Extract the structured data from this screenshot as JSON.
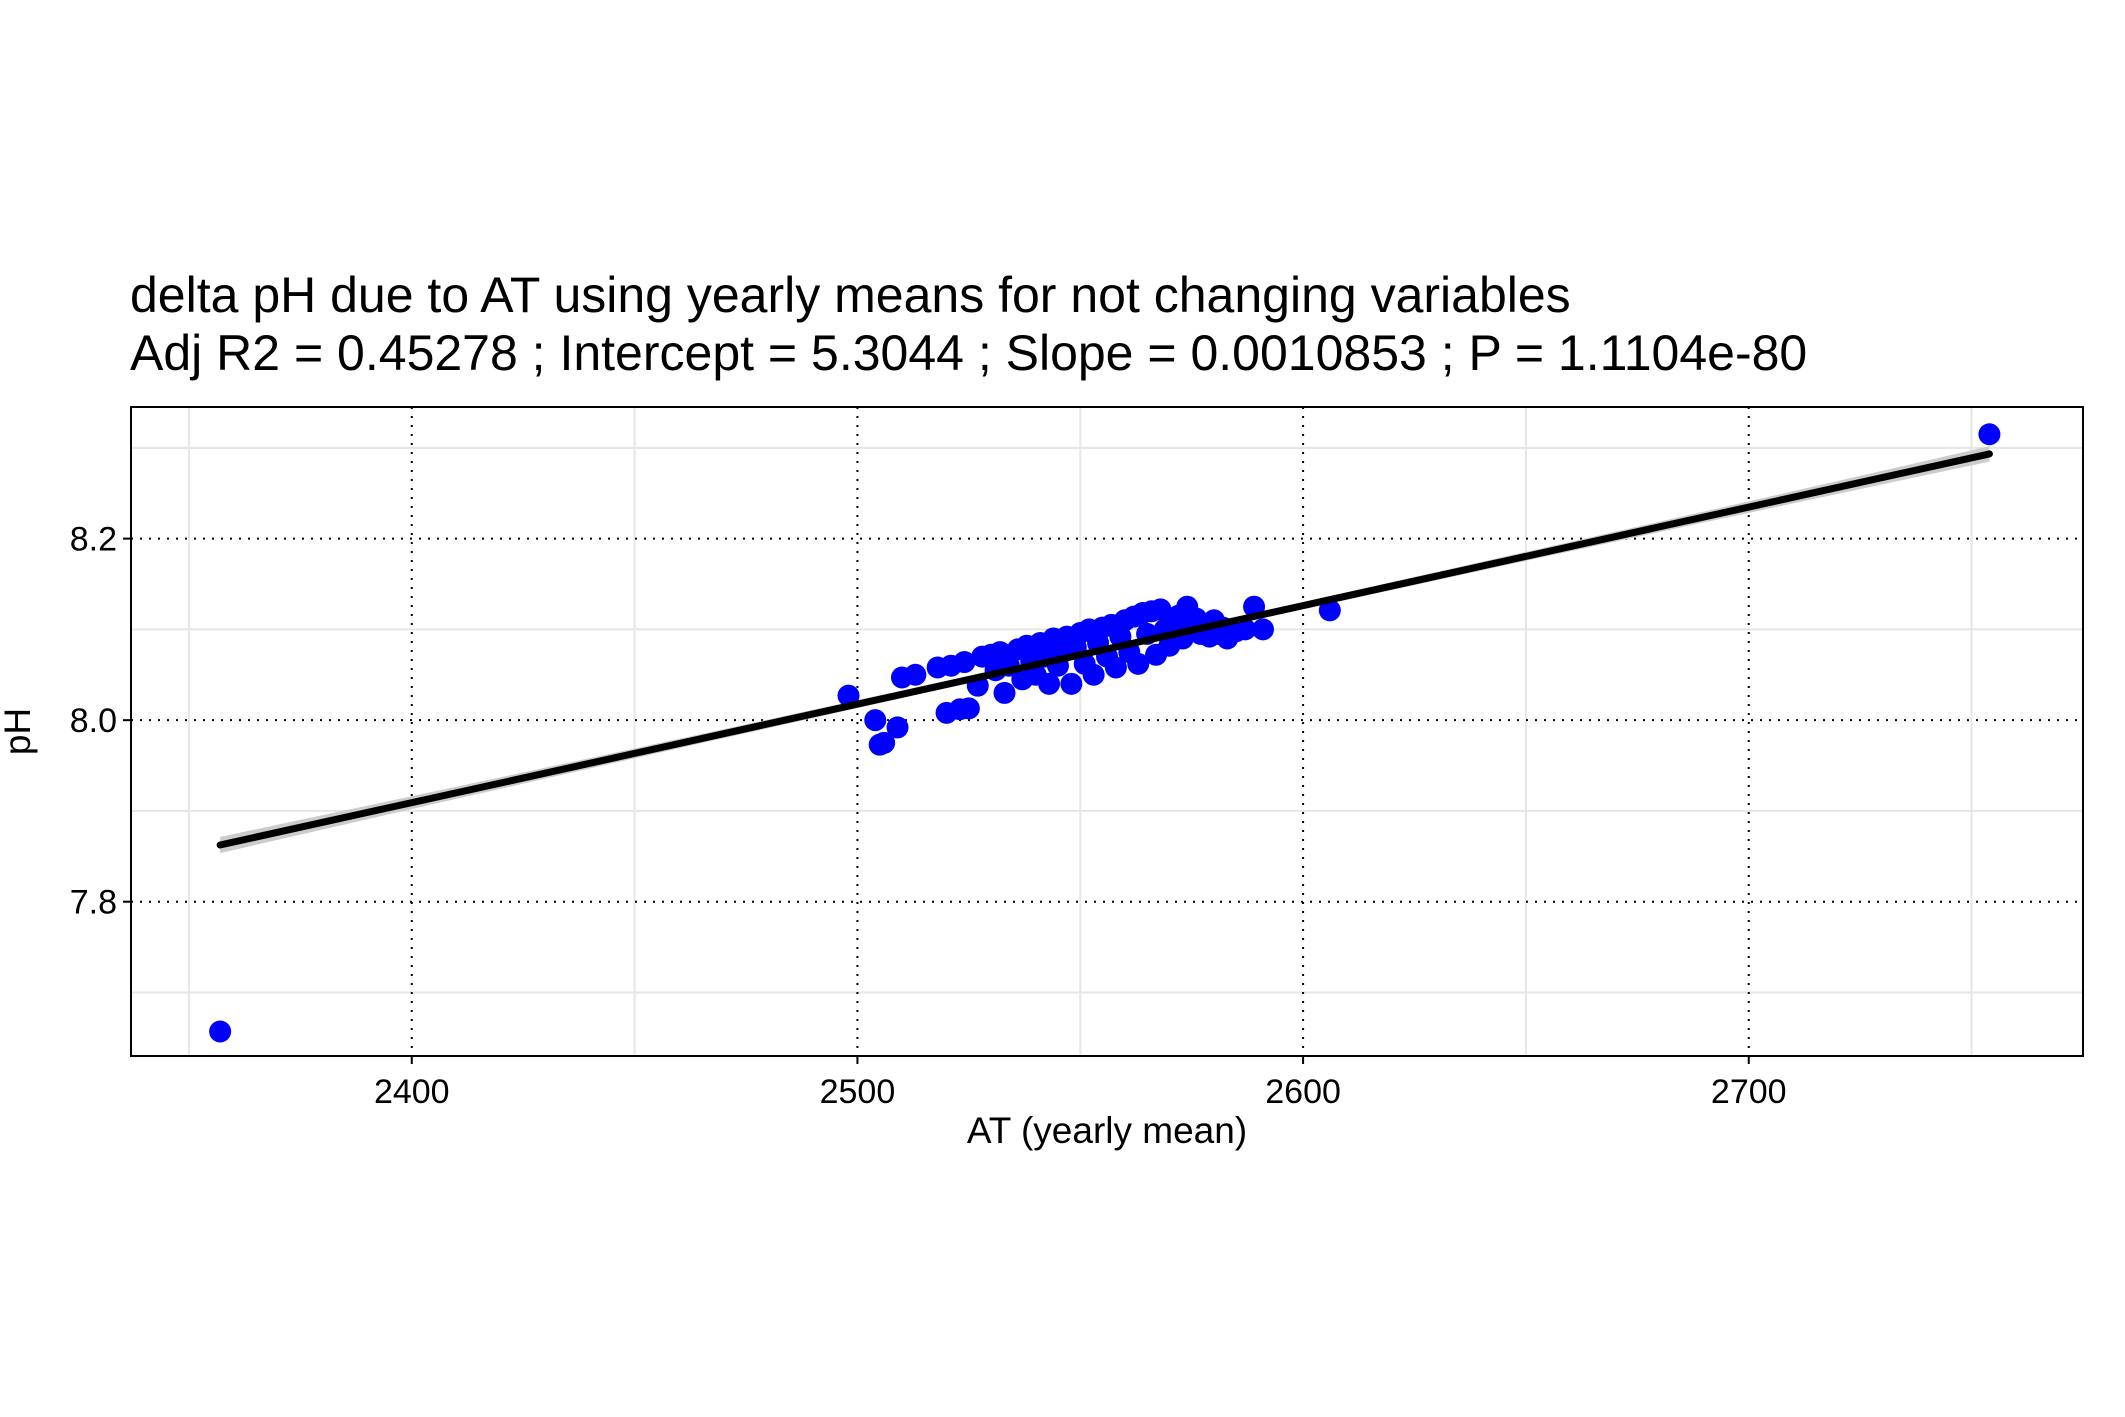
{
  "chart_data": {
    "type": "scatter",
    "title": "delta pH due to AT using yearly means for not changing variables",
    "subtitle": "Adj R2 =  0.45278 ; Intercept = 5.3044 ; Slope = 0.0010853 ; P = 1.1104e-80",
    "xlabel": "AT (yearly mean)",
    "ylabel": "pH",
    "xlim": [
      2337,
      2775
    ],
    "ylim": [
      7.63,
      8.345
    ],
    "x_ticks": [
      2400,
      2500,
      2600,
      2700
    ],
    "y_ticks": [
      7.8,
      8.0,
      8.2
    ],
    "x_tick_labels": [
      "2400",
      "2500",
      "2600",
      "2700"
    ],
    "y_tick_labels": [
      "7.8",
      "8.0",
      "8.2"
    ],
    "grid": true,
    "colors": {
      "points": "#0000ff",
      "fit_line": "#000000",
      "confidence_band": "#cccccc",
      "minor_grid": "#e6e6e6",
      "major_grid": "#000000"
    },
    "regression": {
      "intercept": 5.3044,
      "slope": 0.0010853,
      "x_range": [
        2357,
        2754
      ]
    },
    "series": [
      {
        "points": [
          [
            2357,
            7.657
          ],
          [
            2754,
            8.315
          ],
          [
            2606,
            8.121
          ],
          [
            2498,
            8.027
          ],
          [
            2504,
            8.0
          ],
          [
            2505,
            7.973
          ],
          [
            2506,
            7.975
          ],
          [
            2509,
            7.992
          ],
          [
            2510,
            8.047
          ],
          [
            2513,
            8.05
          ],
          [
            2518,
            8.058
          ],
          [
            2520,
            8.008
          ],
          [
            2521,
            8.06
          ],
          [
            2523,
            8.012
          ],
          [
            2525,
            8.013
          ],
          [
            2524,
            8.064
          ],
          [
            2527,
            8.038
          ],
          [
            2528,
            8.07
          ],
          [
            2530,
            8.072
          ],
          [
            2531,
            8.055
          ],
          [
            2532,
            8.075
          ],
          [
            2533,
            8.03
          ],
          [
            2534,
            8.06
          ],
          [
            2536,
            8.078
          ],
          [
            2537,
            8.045
          ],
          [
            2538,
            8.082
          ],
          [
            2539,
            8.065
          ],
          [
            2540,
            8.05
          ],
          [
            2541,
            8.085
          ],
          [
            2542,
            8.07
          ],
          [
            2543,
            8.04
          ],
          [
            2544,
            8.09
          ],
          [
            2545,
            8.06
          ],
          [
            2546,
            8.075
          ],
          [
            2547,
            8.092
          ],
          [
            2548,
            8.04
          ],
          [
            2549,
            8.08
          ],
          [
            2550,
            8.096
          ],
          [
            2551,
            8.062
          ],
          [
            2552,
            8.1
          ],
          [
            2553,
            8.05
          ],
          [
            2554,
            8.085
          ],
          [
            2555,
            8.102
          ],
          [
            2556,
            8.07
          ],
          [
            2557,
            8.105
          ],
          [
            2558,
            8.058
          ],
          [
            2559,
            8.092
          ],
          [
            2560,
            8.11
          ],
          [
            2561,
            8.075
          ],
          [
            2562,
            8.114
          ],
          [
            2563,
            8.062
          ],
          [
            2564,
            8.118
          ],
          [
            2565,
            8.095
          ],
          [
            2566,
            8.12
          ],
          [
            2567,
            8.072
          ],
          [
            2568,
            8.122
          ],
          [
            2569,
            8.1
          ],
          [
            2570,
            8.082
          ],
          [
            2571,
            8.11
          ],
          [
            2572,
            8.115
          ],
          [
            2573,
            8.09
          ],
          [
            2574,
            8.125
          ],
          [
            2575,
            8.1
          ],
          [
            2576,
            8.112
          ],
          [
            2577,
            8.095
          ],
          [
            2578,
            8.105
          ],
          [
            2579,
            8.092
          ],
          [
            2580,
            8.11
          ],
          [
            2581,
            8.095
          ],
          [
            2582,
            8.102
          ],
          [
            2583,
            8.09
          ],
          [
            2585,
            8.098
          ],
          [
            2587,
            8.1
          ],
          [
            2589,
            8.125
          ],
          [
            2591,
            8.1
          ]
        ]
      }
    ]
  }
}
